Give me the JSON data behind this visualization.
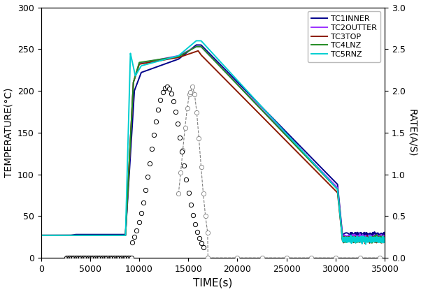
{
  "xlabel": "TIME(s)",
  "ylabel_left": "TEMPERATURE(°C)",
  "ylabel_right": "RATE(A/S)",
  "xlim": [
    0,
    35000
  ],
  "ylim_left": [
    0,
    300
  ],
  "ylim_right": [
    0,
    3.0
  ],
  "yticks_left": [
    0,
    50,
    100,
    150,
    200,
    250,
    300
  ],
  "yticks_right": [
    0.0,
    0.5,
    1.0,
    1.5,
    2.0,
    2.5,
    3.0
  ],
  "xticks": [
    0,
    5000,
    10000,
    15000,
    20000,
    25000,
    30000,
    35000
  ],
  "colors": {
    "TC1INNER": "#00008B",
    "TC2OUTTER": "#9B30FF",
    "TC3TOP": "#8B1A00",
    "TC4LNZ": "#228B22",
    "TC5RNZ": "#00CED1"
  },
  "line_width": 1.4,
  "background": "#ffffff"
}
